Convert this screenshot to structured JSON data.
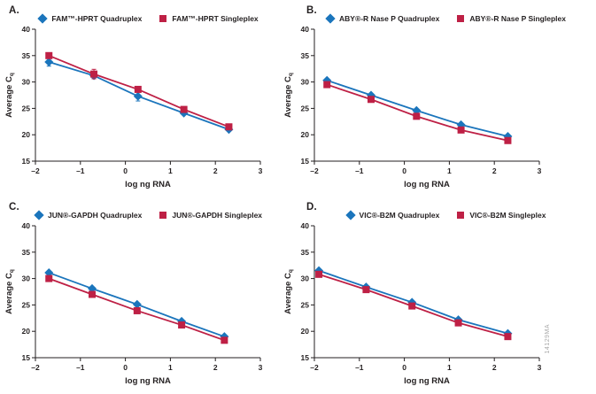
{
  "figure": {
    "watermark": "14129MA",
    "colors": {
      "quadruplex_blue": "#1b75bc",
      "singleplex_red": "#be2045",
      "axis": "#231f20"
    }
  },
  "chart_data": [
    {
      "type": "line",
      "panel_label": "A.",
      "xlabel": "log ng RNA",
      "ylabel": "Average C",
      "ylabel_sub": "q",
      "xlim": [
        -2,
        3
      ],
      "ylim": [
        15,
        40
      ],
      "xticks": [
        -2,
        -1,
        0,
        1,
        2,
        3
      ],
      "xtick_labels": [
        "–2",
        "–1",
        "0",
        "1",
        "2",
        "3"
      ],
      "yticks": [
        15,
        20,
        25,
        30,
        35,
        40
      ],
      "ytick_labels": [
        "15",
        "20",
        "25",
        "30",
        "35",
        "40"
      ],
      "grid": false,
      "legend_position": "top",
      "series": [
        {
          "name": "FAM™-HPRT Quadruplex",
          "marker": "diamond",
          "color": "#1b75bc",
          "x": [
            -1.7,
            -0.7,
            0.28,
            1.3,
            2.3
          ],
          "y": [
            33.8,
            31.2,
            27.3,
            24.1,
            21.0
          ],
          "yerr": [
            0.8,
            0.5,
            0.9,
            0.3,
            0.2
          ]
        },
        {
          "name": "FAM™-HPRT Singleplex",
          "marker": "square",
          "color": "#be2045",
          "x": [
            -1.7,
            -0.7,
            0.28,
            1.3,
            2.3
          ],
          "y": [
            35.0,
            31.5,
            28.6,
            24.8,
            21.5
          ],
          "yerr": [
            0.2,
            0.9,
            0.2,
            0.2,
            0.2
          ]
        }
      ]
    },
    {
      "type": "line",
      "panel_label": "B.",
      "xlabel": "log ng RNA",
      "ylabel": "Average C",
      "ylabel_sub": "q",
      "xlim": [
        -2,
        3
      ],
      "ylim": [
        15,
        40
      ],
      "xticks": [
        -2,
        -1,
        0,
        1,
        2,
        3
      ],
      "xtick_labels": [
        "–2",
        "–1",
        "0",
        "1",
        "2",
        "3"
      ],
      "yticks": [
        15,
        20,
        25,
        30,
        35,
        40
      ],
      "ytick_labels": [
        "15",
        "20",
        "25",
        "30",
        "35",
        "40"
      ],
      "grid": false,
      "legend_position": "top",
      "series": [
        {
          "name": "ABY®-R Nase P Quadruplex",
          "marker": "diamond",
          "color": "#1b75bc",
          "x": [
            -1.72,
            -0.74,
            0.27,
            1.26,
            2.3
          ],
          "y": [
            30.3,
            27.5,
            24.6,
            21.9,
            19.7
          ],
          "yerr": null
        },
        {
          "name": "ABY®-R Nase P Singleplex",
          "marker": "square",
          "color": "#be2045",
          "x": [
            -1.72,
            -0.74,
            0.27,
            1.26,
            2.3
          ],
          "y": [
            29.5,
            26.7,
            23.5,
            20.9,
            18.9
          ],
          "yerr": null
        }
      ]
    },
    {
      "type": "line",
      "panel_label": "C.",
      "xlabel": "log ng RNA",
      "ylabel": "Average C",
      "ylabel_sub": "q",
      "xlim": [
        -2,
        3
      ],
      "ylim": [
        15,
        40
      ],
      "xticks": [
        -2,
        -1,
        0,
        1,
        2,
        3
      ],
      "xtick_labels": [
        "–2",
        "–1",
        "0",
        "1",
        "2",
        "3"
      ],
      "yticks": [
        15,
        20,
        25,
        30,
        35,
        40
      ],
      "ytick_labels": [
        "15",
        "20",
        "25",
        "30",
        "35",
        "40"
      ],
      "grid": false,
      "legend_position": "top",
      "series": [
        {
          "name": "JUN®-GAPDH Quadruplex",
          "marker": "diamond",
          "color": "#1b75bc",
          "x": [
            -1.7,
            -0.74,
            0.26,
            1.25,
            2.2
          ],
          "y": [
            31.1,
            28.1,
            25.1,
            21.9,
            19.0
          ],
          "yerr": null
        },
        {
          "name": "JUN®-GAPDH Singleplex",
          "marker": "square",
          "color": "#be2045",
          "x": [
            -1.7,
            -0.74,
            0.26,
            1.25,
            2.2
          ],
          "y": [
            30.0,
            27.0,
            23.9,
            21.2,
            18.3
          ],
          "yerr": null
        }
      ]
    },
    {
      "type": "line",
      "panel_label": "D.",
      "xlabel": "log ng RNA",
      "ylabel": "Average C",
      "ylabel_sub": "q",
      "xlim": [
        -2,
        3
      ],
      "ylim": [
        15,
        40
      ],
      "xticks": [
        -2,
        -1,
        0,
        1,
        2,
        3
      ],
      "xtick_labels": [
        "–2",
        "–1",
        "0",
        "1",
        "2",
        "3"
      ],
      "yticks": [
        15,
        20,
        25,
        30,
        35,
        40
      ],
      "ytick_labels": [
        "15",
        "20",
        "25",
        "30",
        "35",
        "40"
      ],
      "grid": false,
      "legend_position": "top",
      "series": [
        {
          "name": "VIC®-B2M Quadruplex",
          "marker": "diamond",
          "color": "#1b75bc",
          "x": [
            -1.9,
            -0.85,
            0.17,
            1.2,
            2.3
          ],
          "y": [
            31.5,
            28.4,
            25.5,
            22.2,
            19.6
          ],
          "yerr": null
        },
        {
          "name": "VIC®-B2M Singleplex",
          "marker": "square",
          "color": "#be2045",
          "x": [
            -1.9,
            -0.85,
            0.17,
            1.2,
            2.3
          ],
          "y": [
            30.8,
            27.9,
            24.8,
            21.6,
            19.0
          ],
          "yerr": null
        }
      ]
    }
  ]
}
